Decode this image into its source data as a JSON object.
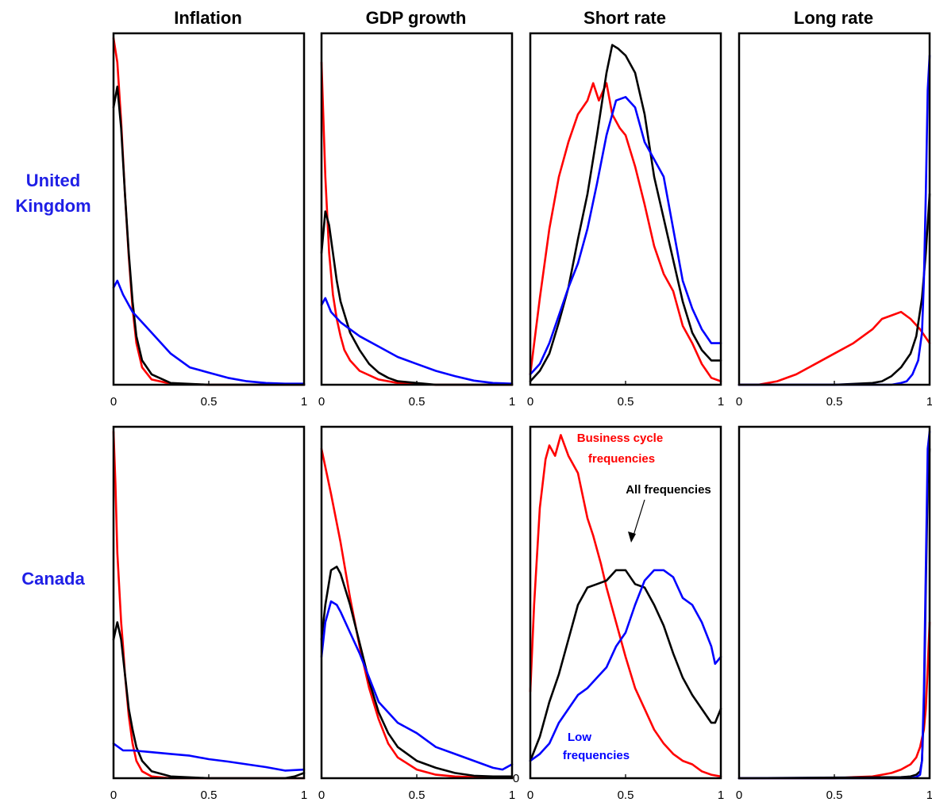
{
  "figure": {
    "column_titles": [
      "Inflation",
      "GDP growth",
      "Short rate",
      "Long rate"
    ],
    "row_labels": [
      [
        "United",
        "Kingdom"
      ],
      [
        "Canada"
      ]
    ],
    "x_tick_labels": [
      "0",
      "0.5",
      "1"
    ],
    "extra_tick_label": "0"
  },
  "colors": {
    "business_cycle": "#ff0000",
    "all": "#000000",
    "low": "#0000ff",
    "row_label": "#1f1fe6"
  },
  "annotations": {
    "business_cycle": [
      "Business cycle",
      "frequencies"
    ],
    "all": "All frequencies",
    "low": [
      "Low",
      "frequencies"
    ]
  },
  "chart_data": [
    {
      "type": "line",
      "row": "United Kingdom",
      "title": "Inflation",
      "xlim": [
        0,
        1
      ],
      "ylim": [
        0,
        1
      ],
      "grid": false,
      "series": [
        {
          "key": "red",
          "x": [
            0,
            0.02,
            0.04,
            0.06,
            0.08,
            0.1,
            0.12,
            0.15,
            0.2,
            0.3,
            0.5,
            1
          ],
          "values": [
            1.0,
            0.93,
            0.76,
            0.55,
            0.37,
            0.22,
            0.12,
            0.05,
            0.015,
            0.003,
            0,
            0
          ]
        },
        {
          "key": "black",
          "x": [
            0,
            0.02,
            0.04,
            0.06,
            0.08,
            0.1,
            0.12,
            0.15,
            0.2,
            0.3,
            0.5,
            1
          ],
          "values": [
            0.8,
            0.86,
            0.74,
            0.55,
            0.38,
            0.24,
            0.14,
            0.07,
            0.03,
            0.005,
            0,
            0
          ]
        },
        {
          "key": "blue",
          "x": [
            0,
            0.02,
            0.05,
            0.1,
            0.15,
            0.2,
            0.3,
            0.4,
            0.5,
            0.6,
            0.7,
            0.8,
            0.9,
            1
          ],
          "values": [
            0.28,
            0.3,
            0.26,
            0.21,
            0.18,
            0.15,
            0.09,
            0.05,
            0.035,
            0.02,
            0.01,
            0.005,
            0.003,
            0.003
          ]
        }
      ]
    },
    {
      "type": "line",
      "row": "United Kingdom",
      "title": "GDP growth",
      "xlim": [
        0,
        1
      ],
      "ylim": [
        0,
        1
      ],
      "grid": false,
      "series": [
        {
          "key": "red",
          "x": [
            0,
            0.02,
            0.04,
            0.06,
            0.08,
            0.1,
            0.12,
            0.15,
            0.2,
            0.3,
            0.4,
            0.6,
            1
          ],
          "values": [
            0.93,
            0.6,
            0.38,
            0.26,
            0.19,
            0.14,
            0.1,
            0.07,
            0.04,
            0.015,
            0.005,
            0,
            0
          ]
        },
        {
          "key": "black",
          "x": [
            0,
            0.02,
            0.04,
            0.06,
            0.08,
            0.1,
            0.15,
            0.2,
            0.25,
            0.3,
            0.35,
            0.4,
            0.5,
            0.6,
            1
          ],
          "values": [
            0.38,
            0.5,
            0.46,
            0.38,
            0.3,
            0.24,
            0.15,
            0.1,
            0.06,
            0.035,
            0.02,
            0.01,
            0.005,
            0,
            0
          ]
        },
        {
          "key": "blue",
          "x": [
            0,
            0.02,
            0.05,
            0.1,
            0.15,
            0.2,
            0.3,
            0.4,
            0.5,
            0.6,
            0.7,
            0.8,
            0.9,
            1
          ],
          "values": [
            0.23,
            0.25,
            0.21,
            0.18,
            0.16,
            0.14,
            0.11,
            0.08,
            0.06,
            0.04,
            0.025,
            0.012,
            0.005,
            0.003
          ]
        }
      ]
    },
    {
      "type": "line",
      "row": "United Kingdom",
      "title": "Short rate",
      "xlim": [
        0,
        1
      ],
      "ylim": [
        0,
        1
      ],
      "grid": false,
      "series": [
        {
          "key": "red",
          "x": [
            0,
            0.05,
            0.1,
            0.15,
            0.2,
            0.25,
            0.3,
            0.33,
            0.36,
            0.4,
            0.43,
            0.47,
            0.5,
            0.55,
            0.6,
            0.65,
            0.7,
            0.75,
            0.8,
            0.85,
            0.9,
            0.95,
            1
          ],
          "values": [
            0.03,
            0.25,
            0.45,
            0.6,
            0.7,
            0.78,
            0.82,
            0.87,
            0.82,
            0.87,
            0.78,
            0.74,
            0.72,
            0.63,
            0.52,
            0.4,
            0.32,
            0.27,
            0.17,
            0.12,
            0.06,
            0.02,
            0.01
          ]
        },
        {
          "key": "black",
          "x": [
            0,
            0.05,
            0.1,
            0.15,
            0.2,
            0.25,
            0.3,
            0.35,
            0.4,
            0.43,
            0.46,
            0.5,
            0.55,
            0.6,
            0.65,
            0.7,
            0.75,
            0.8,
            0.85,
            0.9,
            0.95,
            1
          ],
          "values": [
            0.01,
            0.04,
            0.09,
            0.18,
            0.28,
            0.42,
            0.55,
            0.72,
            0.9,
            0.98,
            0.97,
            0.95,
            0.9,
            0.78,
            0.6,
            0.48,
            0.36,
            0.24,
            0.15,
            0.1,
            0.07,
            0.07
          ]
        },
        {
          "key": "blue",
          "x": [
            0,
            0.05,
            0.1,
            0.15,
            0.2,
            0.25,
            0.3,
            0.35,
            0.4,
            0.45,
            0.5,
            0.55,
            0.6,
            0.65,
            0.7,
            0.75,
            0.8,
            0.85,
            0.9,
            0.95,
            1
          ],
          "values": [
            0.03,
            0.06,
            0.12,
            0.2,
            0.28,
            0.35,
            0.45,
            0.58,
            0.72,
            0.82,
            0.83,
            0.8,
            0.7,
            0.65,
            0.6,
            0.45,
            0.3,
            0.22,
            0.16,
            0.12,
            0.12
          ]
        }
      ]
    },
    {
      "type": "line",
      "row": "United Kingdom",
      "title": "Long rate",
      "xlim": [
        0,
        1
      ],
      "ylim": [
        0,
        1
      ],
      "grid": false,
      "series": [
        {
          "key": "red",
          "x": [
            0,
            0.1,
            0.2,
            0.3,
            0.4,
            0.5,
            0.6,
            0.7,
            0.75,
            0.8,
            0.85,
            0.9,
            0.95,
            1
          ],
          "values": [
            0,
            0,
            0.01,
            0.03,
            0.06,
            0.09,
            0.12,
            0.16,
            0.19,
            0.2,
            0.21,
            0.19,
            0.16,
            0.12
          ]
        },
        {
          "key": "black",
          "x": [
            0,
            0.5,
            0.7,
            0.75,
            0.8,
            0.85,
            0.9,
            0.93,
            0.96,
            0.98,
            1
          ],
          "values": [
            0,
            0,
            0.005,
            0.01,
            0.025,
            0.05,
            0.09,
            0.14,
            0.25,
            0.38,
            0.55
          ]
        },
        {
          "key": "blue",
          "x": [
            0,
            0.8,
            0.85,
            0.88,
            0.91,
            0.94,
            0.96,
            0.97,
            0.98,
            0.99,
            1
          ],
          "values": [
            0,
            0,
            0.005,
            0.01,
            0.03,
            0.07,
            0.15,
            0.3,
            0.55,
            0.85,
            0.95
          ]
        }
      ]
    },
    {
      "type": "line",
      "row": "Canada",
      "title": "Inflation",
      "xlim": [
        0,
        1
      ],
      "ylim": [
        0,
        1
      ],
      "grid": false,
      "series": [
        {
          "key": "red",
          "x": [
            0,
            0.01,
            0.02,
            0.03,
            0.04,
            0.05,
            0.06,
            0.08,
            0.1,
            0.12,
            0.15,
            0.2,
            0.3,
            1
          ],
          "values": [
            1.0,
            0.85,
            0.65,
            0.55,
            0.45,
            0.38,
            0.3,
            0.18,
            0.1,
            0.05,
            0.02,
            0.005,
            0,
            0
          ]
        },
        {
          "key": "black",
          "x": [
            0,
            0.02,
            0.04,
            0.06,
            0.08,
            0.1,
            0.12,
            0.15,
            0.2,
            0.3,
            0.5,
            0.7,
            0.9,
            0.95,
            1
          ],
          "values": [
            0.4,
            0.45,
            0.4,
            0.3,
            0.2,
            0.14,
            0.09,
            0.05,
            0.02,
            0.005,
            0,
            0,
            0,
            0.005,
            0.015
          ]
        },
        {
          "key": "blue",
          "x": [
            0,
            0.05,
            0.1,
            0.2,
            0.3,
            0.4,
            0.5,
            0.6,
            0.7,
            0.8,
            0.9,
            1
          ],
          "values": [
            0.1,
            0.08,
            0.08,
            0.075,
            0.07,
            0.065,
            0.055,
            0.048,
            0.04,
            0.032,
            0.022,
            0.025
          ]
        }
      ]
    },
    {
      "type": "line",
      "row": "Canada",
      "title": "GDP growth",
      "xlim": [
        0,
        1
      ],
      "ylim": [
        0,
        1
      ],
      "grid": false,
      "series": [
        {
          "key": "red",
          "x": [
            0,
            0.05,
            0.1,
            0.15,
            0.2,
            0.25,
            0.3,
            0.35,
            0.4,
            0.5,
            0.6,
            0.7,
            0.8,
            0.9,
            1
          ],
          "values": [
            0.95,
            0.82,
            0.68,
            0.52,
            0.38,
            0.26,
            0.17,
            0.1,
            0.06,
            0.025,
            0.01,
            0.005,
            0.003,
            0.003,
            0.003
          ]
        },
        {
          "key": "black",
          "x": [
            0,
            0.02,
            0.05,
            0.08,
            0.1,
            0.15,
            0.2,
            0.25,
            0.3,
            0.35,
            0.4,
            0.5,
            0.6,
            0.7,
            0.8,
            0.9,
            1
          ],
          "values": [
            0.4,
            0.5,
            0.6,
            0.61,
            0.59,
            0.5,
            0.39,
            0.28,
            0.19,
            0.13,
            0.09,
            0.05,
            0.03,
            0.015,
            0.007,
            0.005,
            0.005
          ]
        },
        {
          "key": "blue",
          "x": [
            0,
            0.02,
            0.05,
            0.08,
            0.1,
            0.15,
            0.2,
            0.25,
            0.3,
            0.35,
            0.4,
            0.5,
            0.6,
            0.7,
            0.8,
            0.9,
            0.95,
            1
          ],
          "values": [
            0.35,
            0.45,
            0.51,
            0.5,
            0.48,
            0.42,
            0.36,
            0.29,
            0.22,
            0.19,
            0.16,
            0.13,
            0.09,
            0.07,
            0.05,
            0.03,
            0.025,
            0.04
          ]
        }
      ]
    },
    {
      "type": "line",
      "row": "Canada",
      "title": "Short rate",
      "xlim": [
        0,
        1
      ],
      "ylim": [
        0,
        1
      ],
      "grid": false,
      "series": [
        {
          "key": "red",
          "x": [
            0,
            0.02,
            0.05,
            0.08,
            0.1,
            0.13,
            0.16,
            0.2,
            0.25,
            0.3,
            0.33,
            0.37,
            0.4,
            0.45,
            0.5,
            0.55,
            0.6,
            0.65,
            0.7,
            0.75,
            0.8,
            0.85,
            0.9,
            0.95,
            1
          ],
          "values": [
            0.25,
            0.5,
            0.78,
            0.92,
            0.96,
            0.93,
            0.99,
            0.93,
            0.88,
            0.75,
            0.7,
            0.62,
            0.55,
            0.45,
            0.35,
            0.26,
            0.2,
            0.14,
            0.1,
            0.07,
            0.05,
            0.04,
            0.02,
            0.01,
            0.005
          ]
        },
        {
          "key": "black",
          "x": [
            0,
            0.05,
            0.1,
            0.15,
            0.2,
            0.25,
            0.3,
            0.35,
            0.4,
            0.45,
            0.5,
            0.55,
            0.6,
            0.65,
            0.7,
            0.75,
            0.8,
            0.85,
            0.9,
            0.95,
            0.97,
            1
          ],
          "values": [
            0.05,
            0.12,
            0.22,
            0.3,
            0.4,
            0.5,
            0.55,
            0.56,
            0.57,
            0.6,
            0.6,
            0.56,
            0.55,
            0.5,
            0.44,
            0.36,
            0.29,
            0.24,
            0.2,
            0.16,
            0.16,
            0.2
          ]
        },
        {
          "key": "blue",
          "x": [
            0,
            0.05,
            0.1,
            0.15,
            0.2,
            0.25,
            0.3,
            0.35,
            0.4,
            0.45,
            0.5,
            0.55,
            0.6,
            0.65,
            0.7,
            0.75,
            0.8,
            0.85,
            0.9,
            0.95,
            0.97,
            1
          ],
          "values": [
            0.05,
            0.07,
            0.1,
            0.16,
            0.2,
            0.24,
            0.26,
            0.29,
            0.32,
            0.38,
            0.42,
            0.5,
            0.57,
            0.6,
            0.6,
            0.58,
            0.52,
            0.5,
            0.45,
            0.38,
            0.33,
            0.35
          ]
        }
      ]
    },
    {
      "type": "line",
      "row": "Canada",
      "title": "Long rate",
      "xlim": [
        0,
        1
      ],
      "ylim": [
        0,
        1
      ],
      "grid": false,
      "series": [
        {
          "key": "red",
          "x": [
            0,
            0.5,
            0.6,
            0.7,
            0.75,
            0.8,
            0.85,
            0.9,
            0.93,
            0.95,
            0.97,
            0.98,
            0.99,
            1
          ],
          "values": [
            0,
            0,
            0.003,
            0.005,
            0.01,
            0.015,
            0.025,
            0.04,
            0.06,
            0.09,
            0.14,
            0.2,
            0.32,
            0.45
          ]
        },
        {
          "key": "black",
          "x": [
            0,
            0.85,
            0.9,
            0.93,
            0.95,
            0.96,
            0.97,
            0.98,
            0.99,
            1
          ],
          "values": [
            0,
            0.003,
            0.005,
            0.01,
            0.02,
            0.05,
            0.2,
            0.55,
            0.85,
            0.95
          ]
        },
        {
          "key": "blue",
          "x": [
            0,
            0.9,
            0.93,
            0.95,
            0.96,
            0.97,
            0.98,
            0.99,
            1
          ],
          "values": [
            0,
            0,
            0.003,
            0.01,
            0.05,
            0.25,
            0.6,
            0.95,
            1.0
          ]
        }
      ]
    }
  ]
}
